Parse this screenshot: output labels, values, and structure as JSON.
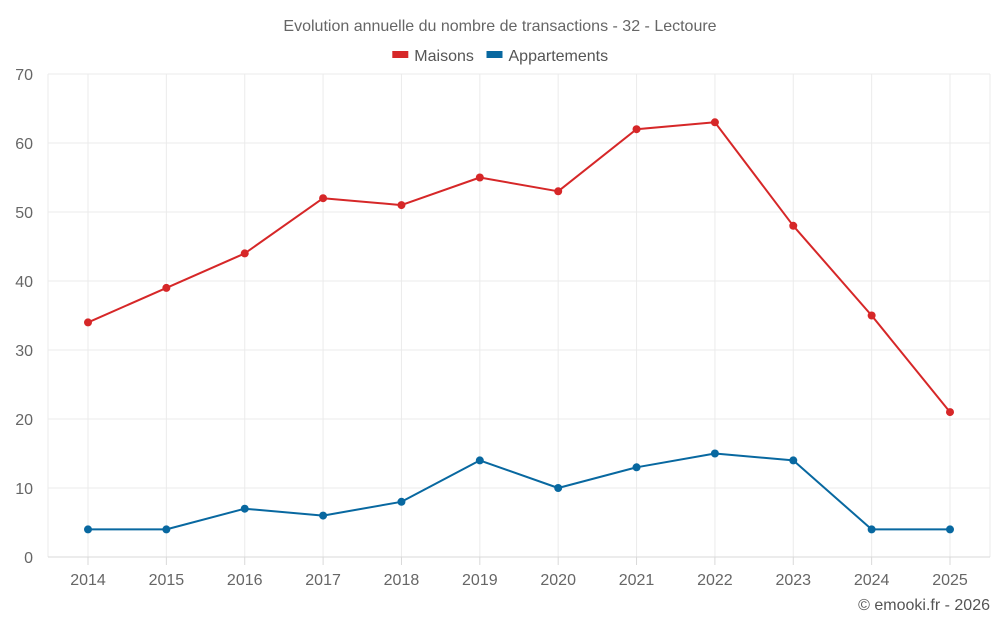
{
  "chart_data": {
    "type": "line",
    "title": "Evolution annuelle du nombre de transactions - 32 - Lectoure",
    "xlabel": "",
    "ylabel": "",
    "categories": [
      "2014",
      "2015",
      "2016",
      "2017",
      "2018",
      "2019",
      "2020",
      "2021",
      "2022",
      "2023",
      "2024",
      "2025"
    ],
    "ylim": [
      0,
      70
    ],
    "yticks": [
      0,
      10,
      20,
      30,
      40,
      50,
      60,
      70
    ],
    "grid": true,
    "legend_position": "top-center",
    "series": [
      {
        "name": "Maisons",
        "color": "#d62728",
        "values": [
          34,
          39,
          44,
          52,
          51,
          55,
          53,
          62,
          63,
          48,
          35,
          21
        ]
      },
      {
        "name": "Appartements",
        "color": "#0868a0",
        "values": [
          4,
          4,
          7,
          6,
          8,
          14,
          10,
          13,
          15,
          14,
          4,
          4
        ]
      }
    ],
    "footer": "© emooki.fr - 2026"
  }
}
